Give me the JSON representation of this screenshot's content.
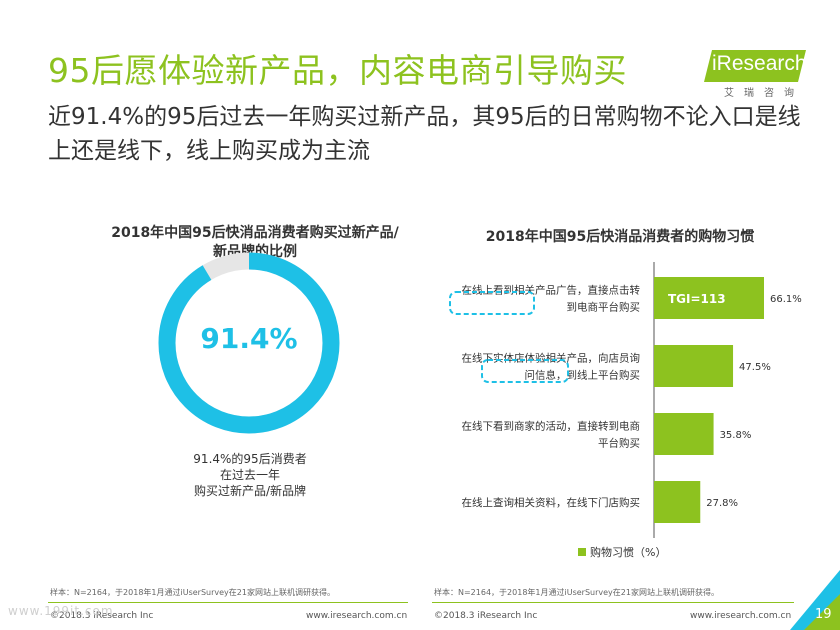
{
  "header": {
    "title": "95后愿体验新产品，内容电商引导购买",
    "subtitle": "近91.4%的95后过去一年购买过新产品，其95后的日常购物不论入口是线上还是线下，线上购买成为主流"
  },
  "logo": {
    "brand": "iResearch",
    "sub": "艾瑞咨询"
  },
  "colors": {
    "accent": "#8dc21f",
    "donut": "#1ec0e6",
    "dashed": "#1ec0e6"
  },
  "chart_data": [
    {
      "type": "pie",
      "title": "2018年中国95后快消品消费者购买过新产品/新品牌的比例",
      "value": 91.4,
      "value_label": "91.4%",
      "note": [
        "91.4%的95后消费者",
        "在过去一年",
        "购买过新产品/新品牌"
      ]
    },
    {
      "type": "bar",
      "orientation": "horizontal",
      "title": "2018年中国95后快消品消费者的购物习惯",
      "categories": [
        [
          "在线上看到相关产品广告，直接点击转",
          "到电商平台购买"
        ],
        [
          "在线下实体店体验相关产品，向店员询",
          "问信息，到线上平台购买"
        ],
        [
          "在线下看到商家的活动，直接转到电商",
          "平台购买"
        ],
        [
          "在线上查询相关资料，在线下门店购买"
        ]
      ],
      "values": [
        66.1,
        47.5,
        35.8,
        27.8
      ],
      "value_labels": [
        "66.1%",
        "47.5%",
        "35.8%",
        "27.8%"
      ],
      "legend": "购物习惯（%）",
      "annotation": "TGI=113",
      "xlim": [
        0,
        100
      ]
    }
  ],
  "footer": {
    "sample_left": "样本：N=2164，于2018年1月通过iUserSurvey在21家网站上联机调研获得。",
    "sample_right": "样本：N=2164，于2018年1月通过iUserSurvey在21家网站上联机调研获得。",
    "copyright_left": "©2018.3 iResearch Inc",
    "url_left": "www.iresearch.com.cn",
    "copyright_right": "©2018.3 iResearch Inc",
    "url_right": "www.iresearch.com.cn",
    "page_number": "19",
    "watermark": "www.199it.com"
  }
}
